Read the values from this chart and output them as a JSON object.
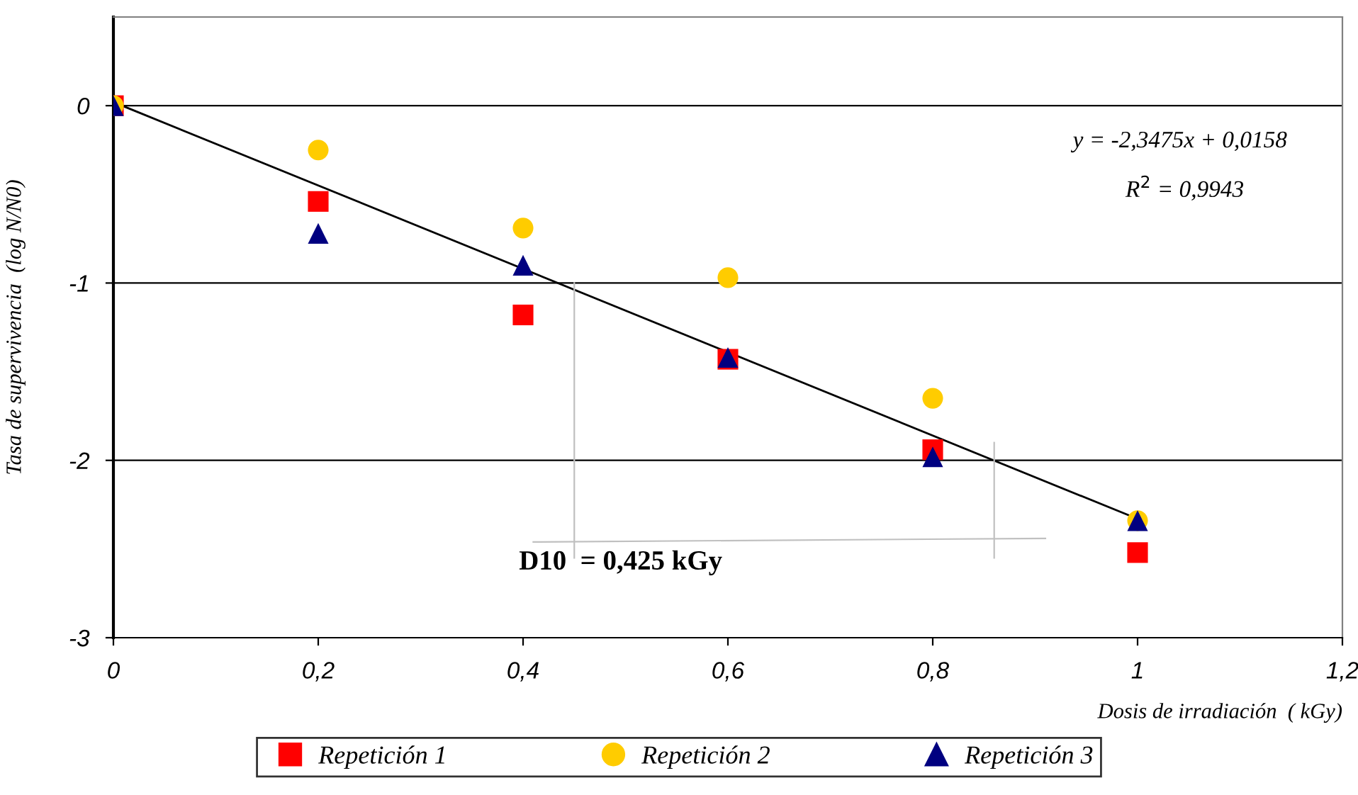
{
  "chart_data": {
    "type": "scatter",
    "xlabel": "Dosis de irradiación  ( kGy)",
    "ylabel": "Tasa de supervivencia  (log N/N0)",
    "x": [
      0,
      0.2,
      0.4,
      0.6,
      0.8,
      1
    ],
    "series": [
      {
        "name": "Repetición 1",
        "color": "#ff0000",
        "marker": "square",
        "values": [
          0,
          -0.54,
          -1.18,
          -1.43,
          -1.94,
          -2.52
        ]
      },
      {
        "name": "Repetición 2",
        "color": "#ffcc00",
        "marker": "circle",
        "values": [
          0,
          -0.25,
          -0.69,
          -0.97,
          -1.65,
          -2.34
        ]
      },
      {
        "name": "Repetición 3",
        "color": "#000080",
        "marker": "triangle",
        "values": [
          0,
          -0.72,
          -0.9,
          -1.42,
          -1.98,
          -2.34
        ]
      },
      {
        "type": "line",
        "color": "#000000",
        "marker": "none",
        "x": [
          0,
          1
        ],
        "values": [
          0.02,
          -2.33
        ]
      },
      {
        "type": "line",
        "color": "#c0c0c0",
        "marker": "none",
        "x": [
          0.45,
          0.45
        ],
        "values": [
          -1,
          -2.55
        ]
      },
      {
        "type": "line",
        "color": "#c0c0c0",
        "marker": "none",
        "x": [
          0.86,
          0.86
        ],
        "values": [
          -1.9,
          -2.55
        ]
      },
      {
        "type": "line",
        "color": "#c0c0c0",
        "marker": "none",
        "x": [
          0.41,
          0.91
        ],
        "values": [
          -2.46,
          -2.44
        ]
      }
    ],
    "annotations": [
      "y = -2,3475x + 0,0158",
      "R$^{2}$ = 0,9943",
      "D10  = 0,425 kGy"
    ],
    "xlim": [
      0,
      1.2
    ],
    "xticks": [
      0,
      {
        "value": 0.2,
        "label": "0,2"
      },
      {
        "value": 0.4,
        "label": "0,4"
      },
      {
        "value": 0.6,
        "label": "0,6"
      },
      {
        "value": 0.8,
        "label": "0,8"
      },
      1,
      {
        "value": 1.2,
        "label": "1,2"
      }
    ],
    "ylim": [
      -3,
      0.5
    ],
    "yticks": [
      -3,
      -2,
      -1,
      0
    ],
    "grid": "y",
    "legend": "bottom"
  }
}
